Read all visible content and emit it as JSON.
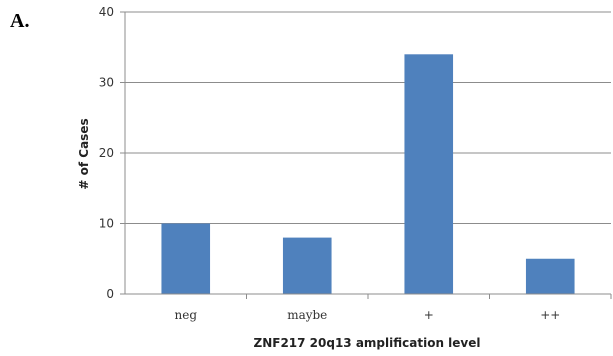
{
  "panel_label": "A.",
  "chart_data": {
    "type": "bar",
    "categories": [
      "neg",
      "maybe",
      "+",
      "++"
    ],
    "values": [
      10,
      8,
      34,
      5
    ],
    "title": "",
    "xlabel": "ZNF217 20q13 amplification level",
    "ylabel": "# of Cases",
    "ylim": [
      0,
      40
    ],
    "yticks": [
      0,
      10,
      20,
      30,
      40
    ],
    "grid": true,
    "colors": {
      "bar": "#4f81bd",
      "grid": "#8c8c8c",
      "axis": "#8c8c8c"
    }
  }
}
